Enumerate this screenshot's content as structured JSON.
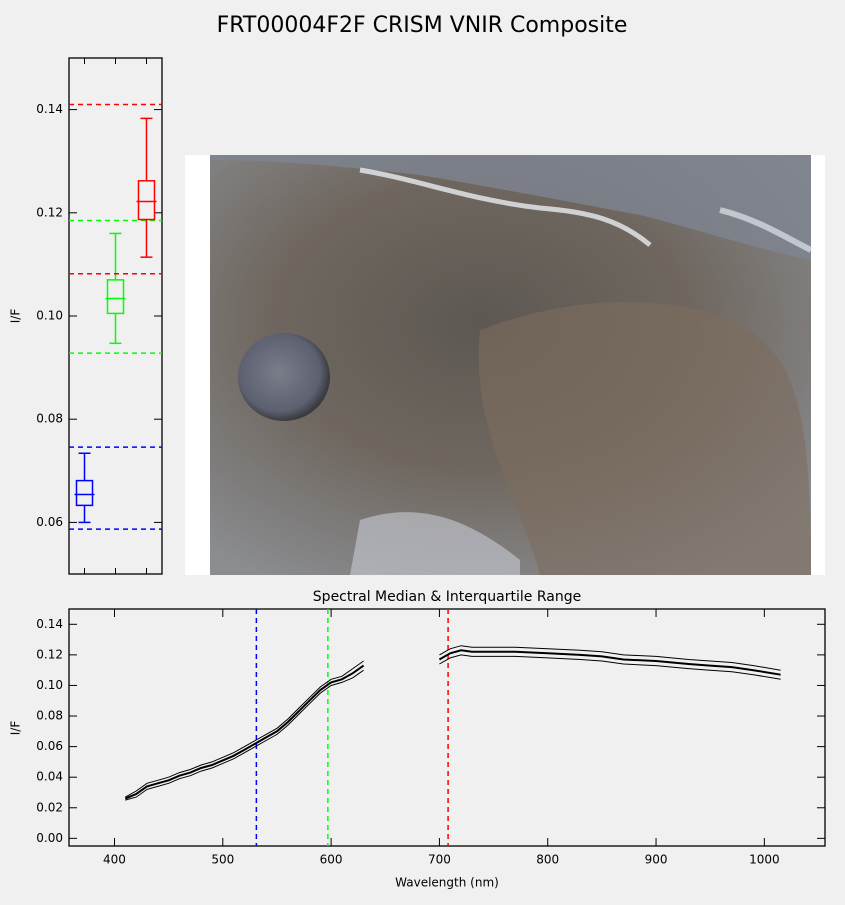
{
  "title": "FRT00004F2F CRISM VNIR Composite",
  "chart_data": [
    {
      "type": "box",
      "y_label": "I/F",
      "ylim": [
        0.05,
        0.15
      ],
      "yticks": [
        0.06,
        0.08,
        {
          "value": 0.1,
          "label": "0.10"
        },
        0.12,
        0.14
      ],
      "boxes": [
        {
          "color": "#0000ff",
          "low": 0.06,
          "q1": 0.0633,
          "median": 0.0654,
          "q3": 0.0681,
          "high": 0.0734,
          "ref_range": [
            0.0587,
            0.0746
          ]
        },
        {
          "color": "#00ff00",
          "low": 0.0947,
          "q1": 0.1005,
          "median": 0.1034,
          "q3": 0.107,
          "high": 0.116,
          "ref_range": [
            0.0928,
            0.1185
          ]
        },
        {
          "color": "#ff0000",
          "low": 0.1114,
          "q1": 0.1187,
          "median": 0.1222,
          "q3": 0.1262,
          "high": 0.1383,
          "ref_range": [
            0.1082,
            0.141
          ]
        }
      ]
    },
    {
      "type": "line",
      "title": "Spectral Median & Interquartile Range",
      "x_label": "Wavelength (nm)",
      "y_label": "I/F",
      "xlim": [
        358,
        1056
      ],
      "ylim": [
        -0.005,
        0.15
      ],
      "xticks": [
        400,
        500,
        600,
        700,
        800,
        900,
        1000
      ],
      "yticks": [
        {
          "value": 0,
          "label": "0.00"
        },
        0.02,
        0.04,
        0.06,
        0.08,
        {
          "value": 0.1,
          "label": "0.10"
        },
        0.12,
        0.14
      ],
      "x": [
        410,
        420,
        430,
        440,
        450,
        460,
        470,
        480,
        490,
        500,
        510,
        520,
        530,
        540,
        550,
        560,
        570,
        580,
        590,
        600,
        610,
        620,
        630,
        665,
        700,
        710,
        720,
        730,
        750,
        770,
        800,
        830,
        850,
        870,
        900,
        930,
        950,
        970,
        990,
        1015
      ],
      "series": [
        {
          "color": "#000000",
          "values": [
            0.025,
            0.027,
            0.032,
            0.034,
            0.036,
            0.039,
            0.041,
            0.044,
            0.046,
            0.049,
            0.052,
            0.056,
            0.06,
            0.064,
            0.068,
            0.074,
            0.081,
            0.088,
            0.095,
            0.1,
            0.102,
            0.105,
            0.11,
            null,
            0.114,
            0.118,
            0.12,
            0.119,
            0.119,
            0.119,
            0.118,
            0.117,
            0.116,
            0.114,
            0.113,
            0.111,
            0.11,
            0.109,
            0.107,
            0.104
          ]
        },
        {
          "color": "#000000",
          "values": [
            0.026,
            0.029,
            0.034,
            0.036,
            0.038,
            0.041,
            0.043,
            0.046,
            0.048,
            0.051,
            0.054,
            0.058,
            0.062,
            0.066,
            0.07,
            0.076,
            0.083,
            0.09,
            0.097,
            0.102,
            0.104,
            0.108,
            0.113,
            null,
            0.117,
            0.121,
            0.123,
            0.122,
            0.122,
            0.122,
            0.121,
            0.12,
            0.119,
            0.117,
            0.116,
            0.114,
            0.113,
            0.112,
            0.11,
            0.107
          ]
        },
        {
          "color": "#000000",
          "values": [
            0.027,
            0.031,
            0.036,
            0.038,
            0.04,
            0.043,
            0.045,
            0.048,
            0.05,
            0.053,
            0.056,
            0.06,
            0.064,
            0.068,
            0.072,
            0.078,
            0.085,
            0.092,
            0.099,
            0.104,
            0.106,
            0.111,
            0.116,
            null,
            0.12,
            0.124,
            0.126,
            0.125,
            0.125,
            0.125,
            0.124,
            0.123,
            0.122,
            0.12,
            0.119,
            0.117,
            0.116,
            0.115,
            0.113,
            0.11
          ]
        }
      ],
      "vlines": [
        {
          "value": 531,
          "color": "#0000ff"
        },
        {
          "value": 597,
          "color": "#00ff00"
        },
        {
          "value": 708,
          "color": "#ff0000"
        }
      ]
    }
  ]
}
